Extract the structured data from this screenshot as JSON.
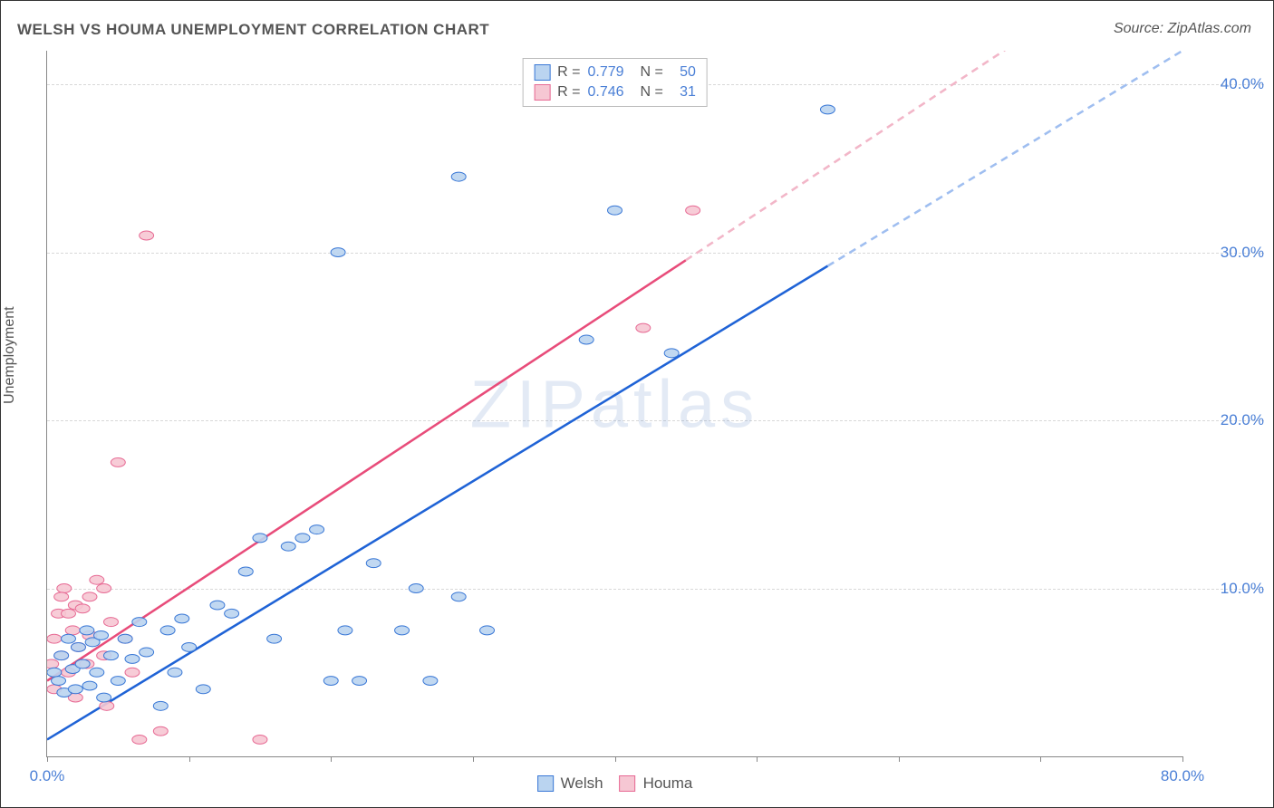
{
  "title": "WELSH VS HOUMA UNEMPLOYMENT CORRELATION CHART",
  "source": "Source: ZipAtlas.com",
  "watermark_prefix": "ZIP",
  "watermark_suffix": "atlas",
  "y_axis_label": "Unemployment",
  "chart": {
    "type": "scatter",
    "xlim": [
      0,
      80
    ],
    "ylim": [
      0,
      42
    ],
    "xticks": [
      0,
      10,
      20,
      30,
      40,
      50,
      60,
      70,
      80
    ],
    "yticks": [
      10,
      20,
      30,
      40
    ],
    "xtick_labels_shown": {
      "0": "0.0%",
      "80": "80.0%"
    },
    "ytick_labels": {
      "10": "10.0%",
      "20": "20.0%",
      "30": "30.0%",
      "40": "40.0%"
    },
    "grid_color": "#d8d8d8",
    "axis_color": "#888888",
    "tick_label_color": "#4a7fd6",
    "background_color": "#ffffff",
    "series": [
      {
        "name": "Welsh",
        "marker_fill": "#bad4f0",
        "marker_stroke": "#3a78d6",
        "marker_radius": 8,
        "marker_opacity": 0.9,
        "line_color": "#1f63d6",
        "line_dash_color": "#9fbef0",
        "line_width": 2,
        "correlation_R": "0.779",
        "correlation_N": "50",
        "trend_start": [
          0,
          1.0
        ],
        "trend_end": [
          80,
          42.0
        ],
        "trend_dash_start_x": 55,
        "points": [
          [
            0.5,
            5.0
          ],
          [
            0.8,
            4.5
          ],
          [
            1.0,
            6.0
          ],
          [
            1.2,
            3.8
          ],
          [
            1.5,
            7.0
          ],
          [
            1.8,
            5.2
          ],
          [
            2.0,
            4.0
          ],
          [
            2.2,
            6.5
          ],
          [
            2.5,
            5.5
          ],
          [
            2.8,
            7.5
          ],
          [
            3.0,
            4.2
          ],
          [
            3.2,
            6.8
          ],
          [
            3.5,
            5.0
          ],
          [
            3.8,
            7.2
          ],
          [
            4.0,
            3.5
          ],
          [
            4.5,
            6.0
          ],
          [
            5.0,
            4.5
          ],
          [
            5.5,
            7.0
          ],
          [
            6.0,
            5.8
          ],
          [
            6.5,
            8.0
          ],
          [
            7.0,
            6.2
          ],
          [
            8.0,
            3.0
          ],
          [
            8.5,
            7.5
          ],
          [
            9.0,
            5.0
          ],
          [
            9.5,
            8.2
          ],
          [
            10.0,
            6.5
          ],
          [
            11.0,
            4.0
          ],
          [
            12.0,
            9.0
          ],
          [
            13.0,
            8.5
          ],
          [
            14.0,
            11.0
          ],
          [
            15.0,
            13.0
          ],
          [
            16.0,
            7.0
          ],
          [
            17.0,
            12.5
          ],
          [
            18.0,
            13.0
          ],
          [
            19.0,
            13.5
          ],
          [
            20.0,
            4.5
          ],
          [
            21.0,
            7.5
          ],
          [
            22.0,
            4.5
          ],
          [
            23.0,
            11.5
          ],
          [
            25.0,
            7.5
          ],
          [
            26.0,
            10.0
          ],
          [
            27.0,
            4.5
          ],
          [
            29.0,
            9.5
          ],
          [
            29.0,
            34.5
          ],
          [
            31.0,
            7.5
          ],
          [
            38.0,
            24.8
          ],
          [
            40.0,
            32.5
          ],
          [
            44.0,
            24.0
          ],
          [
            55.0,
            38.5
          ],
          [
            20.5,
            30.0
          ]
        ]
      },
      {
        "name": "Houma",
        "marker_fill": "#f6c7d3",
        "marker_stroke": "#e76a94",
        "marker_radius": 8,
        "marker_opacity": 0.9,
        "line_color": "#e84c7a",
        "line_dash_color": "#f2b6c8",
        "line_width": 2,
        "correlation_R": "0.746",
        "correlation_N": "31",
        "trend_start": [
          0,
          4.5
        ],
        "trend_end": [
          80,
          49.0
        ],
        "trend_dash_start_x": 45,
        "points": [
          [
            0.3,
            5.5
          ],
          [
            0.5,
            7.0
          ],
          [
            0.8,
            8.5
          ],
          [
            1.0,
            6.0
          ],
          [
            1.2,
            10.0
          ],
          [
            1.5,
            5.0
          ],
          [
            1.8,
            7.5
          ],
          [
            2.0,
            9.0
          ],
          [
            2.2,
            6.5
          ],
          [
            2.5,
            8.8
          ],
          [
            2.8,
            5.5
          ],
          [
            3.0,
            7.2
          ],
          [
            3.5,
            10.5
          ],
          [
            4.0,
            6.0
          ],
          [
            4.2,
            3.0
          ],
          [
            4.5,
            8.0
          ],
          [
            5.0,
            17.5
          ],
          [
            5.5,
            7.0
          ],
          [
            6.0,
            5.0
          ],
          [
            6.5,
            1.0
          ],
          [
            7.0,
            31.0
          ],
          [
            8.0,
            1.5
          ],
          [
            2.0,
            3.5
          ],
          [
            3.0,
            9.5
          ],
          [
            4.0,
            10.0
          ],
          [
            1.0,
            9.5
          ],
          [
            0.5,
            4.0
          ],
          [
            1.5,
            8.5
          ],
          [
            15.0,
            1.0
          ],
          [
            42.0,
            25.5
          ],
          [
            45.5,
            32.5
          ]
        ]
      }
    ]
  },
  "legend_top_rows": [
    {
      "swatch_fill": "#bad4f0",
      "swatch_stroke": "#3a78d6",
      "R_label": "R =",
      "R_value": "0.779",
      "N_label": "N =",
      "N_value": "50"
    },
    {
      "swatch_fill": "#f6c7d3",
      "swatch_stroke": "#e76a94",
      "R_label": "R =",
      "R_value": "0.746",
      "N_label": "N =",
      "N_value": "31"
    }
  ],
  "legend_bottom": [
    {
      "swatch_fill": "#bad4f0",
      "swatch_stroke": "#3a78d6",
      "label": "Welsh"
    },
    {
      "swatch_fill": "#f6c7d3",
      "swatch_stroke": "#e76a94",
      "label": "Houma"
    }
  ]
}
